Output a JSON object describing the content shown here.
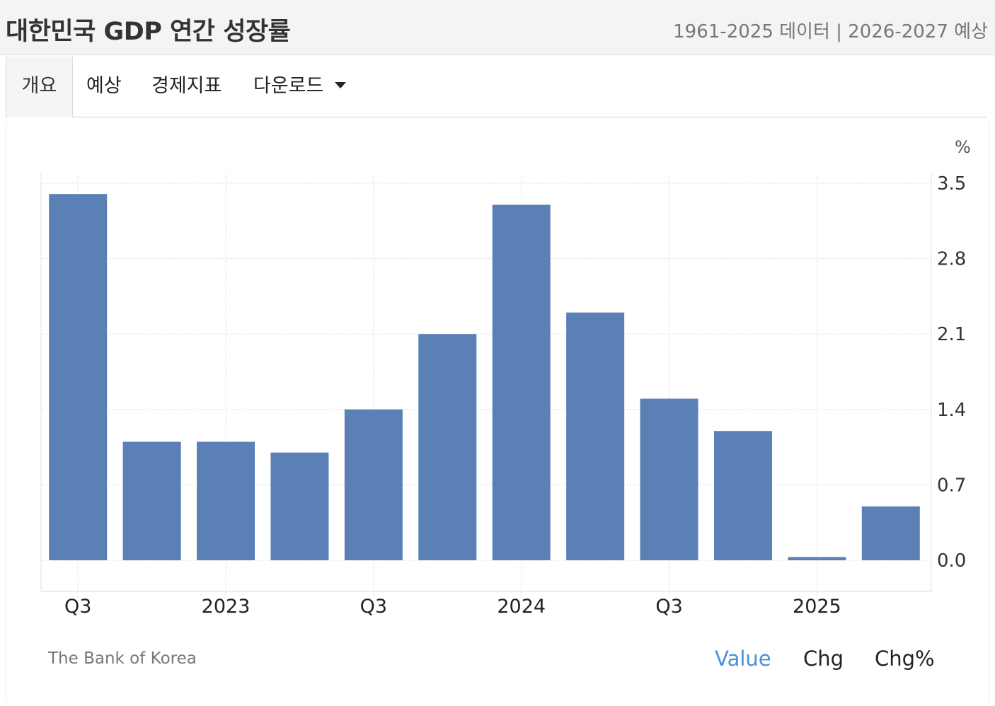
{
  "header": {
    "title": "대한민국 GDP 연간 성장률",
    "meta": "1961-2025 데이터 | 2026-2027 예상"
  },
  "tabs": [
    {
      "label": "개요",
      "active": true
    },
    {
      "label": "예상",
      "active": false
    },
    {
      "label": "경제지표",
      "active": false
    },
    {
      "label": "다운로드",
      "active": false
    }
  ],
  "source": "The Bank of Korea",
  "view_toggles": [
    {
      "label": "Value",
      "active": true
    },
    {
      "label": "Chg",
      "active": false
    },
    {
      "label": "Chg%",
      "active": false
    }
  ],
  "colors": {
    "bar": "#5a80b6",
    "active_toggle": "#4a8fdb",
    "grid": "#dddddd"
  },
  "chart_data": {
    "type": "bar",
    "unit": "%",
    "categories": [
      "2022 Q3",
      "2022 Q4",
      "2023 Q1",
      "2023 Q2",
      "2023 Q3",
      "2023 Q4",
      "2024 Q1",
      "2024 Q2",
      "2024 Q3",
      "2024 Q4",
      "2025 Q1",
      "2025 Q2"
    ],
    "values": [
      3.4,
      1.1,
      1.1,
      1.0,
      1.4,
      2.1,
      3.3,
      2.3,
      1.5,
      1.2,
      0.03,
      0.5
    ],
    "x_tick_labels": [
      {
        "label": "Q3",
        "category": "2022 Q3"
      },
      {
        "label": "2023",
        "category": "2023 Q1"
      },
      {
        "label": "Q3",
        "category": "2023 Q3"
      },
      {
        "label": "2024",
        "category": "2024 Q1"
      },
      {
        "label": "Q3",
        "category": "2024 Q3"
      },
      {
        "label": "2025",
        "category": "2025 Q1"
      }
    ],
    "y_ticks": [
      "3.5",
      "2.8",
      "2.1",
      "1.4",
      "0.7",
      "0.0"
    ],
    "ylim": [
      0,
      3.5
    ],
    "grid": true,
    "y_axis_side": "right"
  }
}
